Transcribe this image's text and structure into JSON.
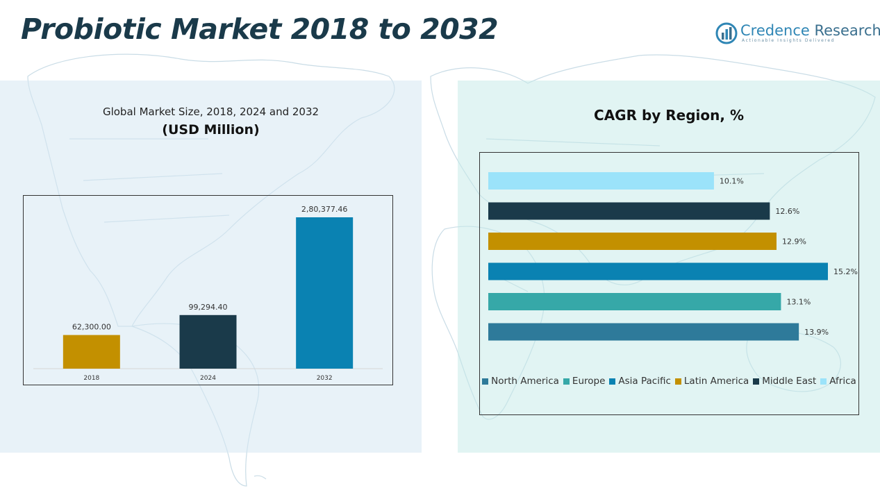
{
  "page": {
    "title": "Probiotic Market 2018 to 2032"
  },
  "logo": {
    "name_first": "Credence",
    "name_second": "Research",
    "tagline": "Actionable Insights Delivered",
    "icon": "bar-chart-circle-icon"
  },
  "colors": {
    "title": "#1a3a4a",
    "north_america": "#2e7a9a",
    "europe": "#36a8a8",
    "asia_pacific": "#0a82b2",
    "latin_america": "#c39000",
    "middle_east": "#1a3a4a",
    "africa": "#9be3fa"
  },
  "chart_data": [
    {
      "type": "bar",
      "title": "Global Market Size, 2018, 2024 and 2032",
      "unit_label": "(USD Million)",
      "categories": [
        "2018",
        "2024",
        "2032"
      ],
      "values": [
        62300.0,
        99294.4,
        280377.46
      ],
      "value_labels": [
        "62,300.00",
        "99,294.40",
        "2,80,377.46"
      ],
      "colors": [
        "#c39000",
        "#1a3a4a",
        "#0a82b2"
      ],
      "ylim": [
        0,
        280377.46
      ],
      "grid": false
    },
    {
      "type": "bar",
      "orientation": "horizontal",
      "title": "CAGR by Region, %",
      "categories": [
        "Africa",
        "Middle East",
        "Latin America",
        "Asia Pacific",
        "Europe",
        "North America"
      ],
      "values": [
        10.1,
        12.6,
        12.9,
        15.2,
        13.1,
        13.9
      ],
      "value_labels": [
        "10.1%",
        "12.6%",
        "12.9%",
        "15.2%",
        "13.1%",
        "13.9%"
      ],
      "colors": [
        "#9be3fa",
        "#1a3a4a",
        "#c39000",
        "#0a82b2",
        "#36a8a8",
        "#2e7a9a"
      ],
      "xlim": [
        0,
        15.2
      ],
      "legend": [
        "North America",
        "Europe",
        "Asia Pacific",
        "Latin America",
        "Middle East",
        "Africa"
      ],
      "legend_colors": [
        "#2e7a9a",
        "#36a8a8",
        "#0a82b2",
        "#c39000",
        "#1a3a4a",
        "#9be3fa"
      ],
      "legend_position": "bottom",
      "grid": false
    }
  ]
}
